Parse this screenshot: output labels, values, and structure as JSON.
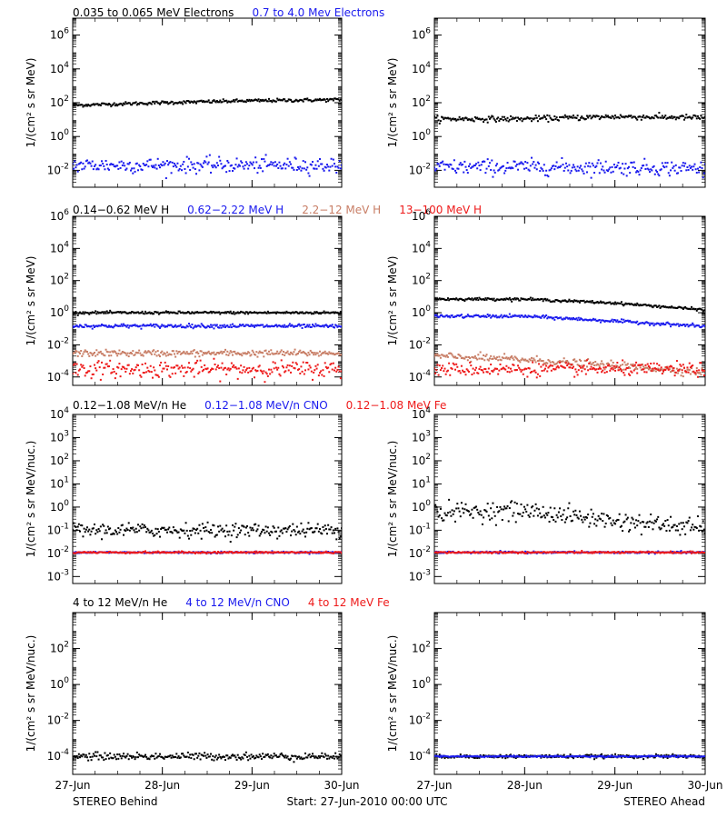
{
  "colors": {
    "black": "#000000",
    "blue": "#1a1aee",
    "tan": "#c87e66",
    "red": "#ee1a1a"
  },
  "footer": {
    "left": "STEREO Behind",
    "center": "Start: 27-Jun-2010 00:00 UTC",
    "right": "STEREO Ahead"
  },
  "x_ticks": [
    "27-Jun",
    "28-Jun",
    "29-Jun",
    "30-Jun"
  ],
  "rows": [
    {
      "title_parts": [
        {
          "text": "0.035 to 0.065 MeV Electrons",
          "color": "black"
        },
        {
          "text": "0.7 to 4.0 Mev Electrons",
          "color": "blue"
        }
      ],
      "ylabel": "1/(cm² s sr MeV)",
      "yticks": [
        {
          "b": "10",
          "e": "6"
        },
        {
          "b": "10",
          "e": "4"
        },
        {
          "b": "10",
          "e": "2"
        },
        {
          "b": "10",
          "e": "0"
        },
        {
          "b": "10",
          "e": "-2"
        }
      ]
    },
    {
      "title_parts": [
        {
          "text": "0.14−0.62 MeV H",
          "color": "black"
        },
        {
          "text": "0.62−2.22 MeV H",
          "color": "blue"
        },
        {
          "text": "2.2−12 MeV H",
          "color": "tan"
        },
        {
          "text": "13−100 MeV H",
          "color": "red"
        }
      ],
      "ylabel": "1/(cm² s sr MeV)",
      "yticks": [
        {
          "b": "10",
          "e": "6"
        },
        {
          "b": "10",
          "e": "4"
        },
        {
          "b": "10",
          "e": "2"
        },
        {
          "b": "10",
          "e": "0"
        },
        {
          "b": "10",
          "e": "-2"
        },
        {
          "b": "10",
          "e": "-4"
        }
      ]
    },
    {
      "title_parts": [
        {
          "text": "0.12−1.08 MeV/n He",
          "color": "black"
        },
        {
          "text": "0.12−1.08 MeV/n CNO",
          "color": "blue"
        },
        {
          "text": "0.12−1.08 MeV Fe",
          "color": "red"
        }
      ],
      "ylabel": "1/(cm² s sr MeV/nuc.)",
      "yticks": [
        {
          "b": "10",
          "e": "4"
        },
        {
          "b": "10",
          "e": "3"
        },
        {
          "b": "10",
          "e": "2"
        },
        {
          "b": "10",
          "e": "1"
        },
        {
          "b": "10",
          "e": "0"
        },
        {
          "b": "10",
          "e": "-1"
        },
        {
          "b": "10",
          "e": "-2"
        },
        {
          "b": "10",
          "e": "-3"
        }
      ]
    },
    {
      "title_parts": [
        {
          "text": "4 to 12 MeV/n He",
          "color": "black"
        },
        {
          "text": "4 to 12 MeV/n CNO",
          "color": "blue"
        },
        {
          "text": "4 to 12 MeV Fe",
          "color": "red"
        }
      ],
      "ylabel": "1/(cm² s sr MeV/nuc.)",
      "yticks": [
        {
          "b": "10",
          "e": "2"
        },
        {
          "b": "10",
          "e": "0"
        },
        {
          "b": "10",
          "e": "-2"
        },
        {
          "b": "10",
          "e": "-4"
        }
      ]
    }
  ],
  "chart_data": [
    {
      "type": "scatter",
      "spacecraft": "STEREO Behind",
      "row": 0,
      "yscale": "log",
      "ylim": [
        0.001,
        10000000
      ],
      "x": [
        "27-Jun",
        "28-Jun",
        "29-Jun",
        "30-Jun"
      ],
      "series": [
        {
          "name": "0.035 to 0.065 MeV Electrons",
          "color": "black",
          "values": [
            70,
            100,
            130,
            150
          ],
          "scatter": 0.05
        },
        {
          "name": "0.7 to 4.0 Mev Electrons",
          "color": "blue",
          "values": [
            0.02,
            0.02,
            0.02,
            0.02
          ],
          "scatter": 0.22
        }
      ]
    },
    {
      "type": "scatter",
      "spacecraft": "STEREO Ahead",
      "row": 0,
      "yscale": "log",
      "ylim": [
        0.001,
        10000000
      ],
      "x": [
        "27-Jun",
        "28-Jun",
        "29-Jun",
        "30-Jun"
      ],
      "series": [
        {
          "name": "0.035 to 0.065 MeV Electrons",
          "color": "black",
          "values": [
            11,
            11,
            15,
            13
          ],
          "scatter": 0.08
        },
        {
          "name": "0.7 to 4.0 Mev Electrons",
          "color": "blue",
          "values": [
            0.015,
            0.016,
            0.015,
            0.013
          ],
          "scatter": 0.22
        }
      ]
    },
    {
      "type": "scatter",
      "spacecraft": "STEREO Behind",
      "row": 1,
      "yscale": "log",
      "ylim": [
        3e-05,
        1000000
      ],
      "x": [
        "27-Jun",
        "28-Jun",
        "29-Jun",
        "30-Jun"
      ],
      "series": [
        {
          "name": "0.14−0.62 MeV H",
          "color": "black",
          "values": [
            1.0,
            1.0,
            1.0,
            1.0
          ],
          "scatter": 0.04
        },
        {
          "name": "0.62−2.22 MeV H",
          "color": "blue",
          "values": [
            0.15,
            0.15,
            0.15,
            0.14
          ],
          "scatter": 0.06
        },
        {
          "name": "2.2−12 MeV H",
          "color": "tan",
          "values": [
            0.003,
            0.003,
            0.003,
            0.003
          ],
          "scatter": 0.1
        },
        {
          "name": "13−100 MeV H",
          "color": "red",
          "values": [
            0.0003,
            0.0003,
            0.0003,
            0.0003
          ],
          "scatter": 0.25
        }
      ]
    },
    {
      "type": "scatter",
      "spacecraft": "STEREO Ahead",
      "row": 1,
      "yscale": "log",
      "ylim": [
        3e-05,
        1000000
      ],
      "x": [
        "27-Jun",
        "28-Jun",
        "29-Jun",
        "30-Jun"
      ],
      "series": [
        {
          "name": "0.14−0.62 MeV H",
          "color": "black",
          "values": [
            7,
            7,
            4,
            1.5
          ],
          "scatter": 0.04
        },
        {
          "name": "0.62−2.22 MeV H",
          "color": "blue",
          "values": [
            0.6,
            0.6,
            0.3,
            0.14
          ],
          "scatter": 0.05
        },
        {
          "name": "2.2−12 MeV H",
          "color": "tan",
          "values": [
            0.002,
            0.0012,
            0.0005,
            0.0002
          ],
          "scatter": 0.12
        },
        {
          "name": "13−100 MeV H",
          "color": "red",
          "values": [
            0.0003,
            0.0003,
            0.0003,
            0.0003
          ],
          "scatter": 0.2
        }
      ]
    },
    {
      "type": "scatter",
      "spacecraft": "STEREO Behind",
      "row": 2,
      "yscale": "log",
      "ylim": [
        0.0005,
        10000
      ],
      "x": [
        "27-Jun",
        "28-Jun",
        "29-Jun",
        "30-Jun"
      ],
      "series": [
        {
          "name": "0.12−1.08 MeV/n He",
          "color": "black",
          "values": [
            0.1,
            0.1,
            0.1,
            0.1
          ],
          "scatter": 0.15
        },
        {
          "name": "0.12−1.08 MeV/n CNO",
          "color": "blue",
          "values": [
            0.011,
            0.011,
            0.011,
            0.011
          ],
          "scatter": 0.02
        },
        {
          "name": "0.12−1.08 MeV Fe",
          "color": "red",
          "values": [
            0.011,
            0.011,
            0.011,
            0.011
          ],
          "scatter": 0.02
        }
      ]
    },
    {
      "type": "scatter",
      "spacecraft": "STEREO Ahead",
      "row": 2,
      "yscale": "log",
      "ylim": [
        0.0005,
        10000
      ],
      "x": [
        "27-Jun",
        "28-Jun",
        "29-Jun",
        "30-Jun"
      ],
      "series": [
        {
          "name": "0.12−1.08 MeV/n He",
          "color": "black",
          "values": [
            0.6,
            0.7,
            0.25,
            0.12
          ],
          "scatter": 0.2
        },
        {
          "name": "0.12−1.08 MeV/n CNO",
          "color": "blue",
          "values": [
            0.011,
            0.011,
            0.011,
            0.011
          ],
          "scatter": 0.02
        },
        {
          "name": "0.12−1.08 MeV Fe",
          "color": "red",
          "values": [
            0.011,
            0.011,
            0.011,
            0.011
          ],
          "scatter": 0.02
        }
      ]
    },
    {
      "type": "scatter",
      "spacecraft": "STEREO Behind",
      "row": 3,
      "yscale": "log",
      "ylim": [
        1e-05,
        10000
      ],
      "x": [
        "27-Jun",
        "28-Jun",
        "29-Jun",
        "30-Jun"
      ],
      "series": [
        {
          "name": "4 to 12 MeV/n He",
          "color": "black",
          "values": [
            0.0001,
            0.0001,
            0.0001,
            0.0001
          ],
          "scatter": 0.1
        },
        {
          "name": "4 to 12 MeV/n CNO",
          "color": "blue",
          "values": [],
          "scatter": 0
        },
        {
          "name": "4 to 12 MeV Fe",
          "color": "red",
          "values": [],
          "scatter": 0
        }
      ]
    },
    {
      "type": "scatter",
      "spacecraft": "STEREO Ahead",
      "row": 3,
      "yscale": "log",
      "ylim": [
        1e-05,
        10000
      ],
      "x": [
        "27-Jun",
        "28-Jun",
        "29-Jun",
        "30-Jun"
      ],
      "series": [
        {
          "name": "4 to 12 MeV/n He",
          "color": "black",
          "values": [
            0.0001,
            0.0001,
            0.0001,
            0.0001
          ],
          "scatter": 0.05
        },
        {
          "name": "4 to 12 MeV/n CNO",
          "color": "blue",
          "values": [
            0.0001,
            0.0001,
            0.0001,
            0.0001
          ],
          "scatter": 0.02
        },
        {
          "name": "4 to 12 MeV Fe",
          "color": "red",
          "values": [],
          "scatter": 0
        }
      ]
    }
  ]
}
